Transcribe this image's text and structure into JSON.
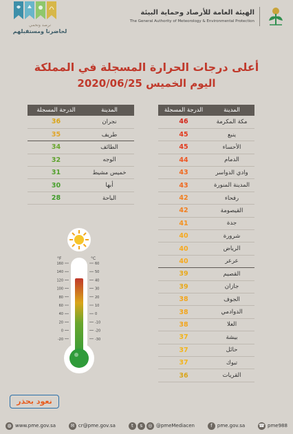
{
  "header": {
    "org_name_ar": "الهيئة العامة للأرصاد وحماية البيئة",
    "org_name_en": "The General Authority of Meteorology & Environmental Protection",
    "tagline_top": "نرصد ونحمي",
    "tagline_bottom": "لحاضرنا ومستقبلهم"
  },
  "title": {
    "line1": "أعلى درجات الحرارة المسجلة في المملكة",
    "line2": "اليوم الخميس 2020/06/25"
  },
  "table_headers": {
    "city": "المدينة",
    "temp": "الدرجة المسجلة"
  },
  "right_table": [
    {
      "city": "مكة المكرمة",
      "temp": "46"
    },
    {
      "city": "ينبع",
      "temp": "45"
    },
    {
      "city": "الأحساء",
      "temp": "45"
    },
    {
      "city": "الدمام",
      "temp": "44"
    },
    {
      "city": "وادي الدواسر",
      "temp": "43"
    },
    {
      "city": "المدينة المنورة",
      "temp": "43"
    },
    {
      "city": "رفحاء",
      "temp": "42"
    },
    {
      "city": "القيصومة",
      "temp": "42"
    },
    {
      "city": "جدة",
      "temp": "41"
    },
    {
      "city": "شرورة",
      "temp": "40"
    },
    {
      "city": "الرياض",
      "temp": "40"
    },
    {
      "city": "عرعر",
      "temp": "40"
    },
    {
      "city": "القصيم",
      "temp": "39"
    },
    {
      "city": "جازان",
      "temp": "39"
    },
    {
      "city": "الجوف",
      "temp": "38"
    },
    {
      "city": "الدوادمي",
      "temp": "38"
    },
    {
      "city": "العلا",
      "temp": "38"
    },
    {
      "city": "بيشة",
      "temp": "37"
    },
    {
      "city": "حائل",
      "temp": "37"
    },
    {
      "city": "تبوك",
      "temp": "37"
    },
    {
      "city": "القريات",
      "temp": "36"
    }
  ],
  "left_table": [
    {
      "city": "نجران",
      "temp": "36"
    },
    {
      "city": "طريف",
      "temp": "35"
    },
    {
      "city": "الطائف",
      "temp": "34"
    },
    {
      "city": "الوجه",
      "temp": "32"
    },
    {
      "city": "خميس مشيط",
      "temp": "31"
    },
    {
      "city": "أبها",
      "temp": "30"
    },
    {
      "city": "الباحة",
      "temp": "28"
    }
  ],
  "thermometer": {
    "unit_f": "°F",
    "unit_c": "°C",
    "f_ticks": [
      "160",
      "140",
      "120",
      "100",
      "80",
      "60",
      "40",
      "20",
      "0",
      "-20"
    ],
    "c_ticks": [
      "60",
      "50",
      "40",
      "30",
      "20",
      "10",
      "0",
      "-10",
      "-20",
      "-30"
    ]
  },
  "brand_button": "نعود بحذر",
  "footer": {
    "website": "www.pme.gov.sa",
    "email": "cr@pme.gov.sa",
    "social": "@pmeMediacen",
    "website2": "pme.gov.sa",
    "phone": "pme988"
  },
  "colors": {
    "title": "#c0392b",
    "header_bg": "#5f5a55",
    "temp_colors": {
      "46": "#d4281c",
      "45": "#e23b1f",
      "44": "#ee5622",
      "43": "#f06a21",
      "42": "#f27f20",
      "41": "#f49220",
      "40": "#f6a91f",
      "39": "#e8a91c",
      "38": "#f2a51c",
      "37": "#f2b41c",
      "36": "#d9a51a",
      "35": "#e0a52a",
      "34": "#6aa62e",
      "32": "#5ea22d",
      "31": "#52a02c",
      "30": "#47a02c",
      "28": "#3f9b2a"
    }
  }
}
